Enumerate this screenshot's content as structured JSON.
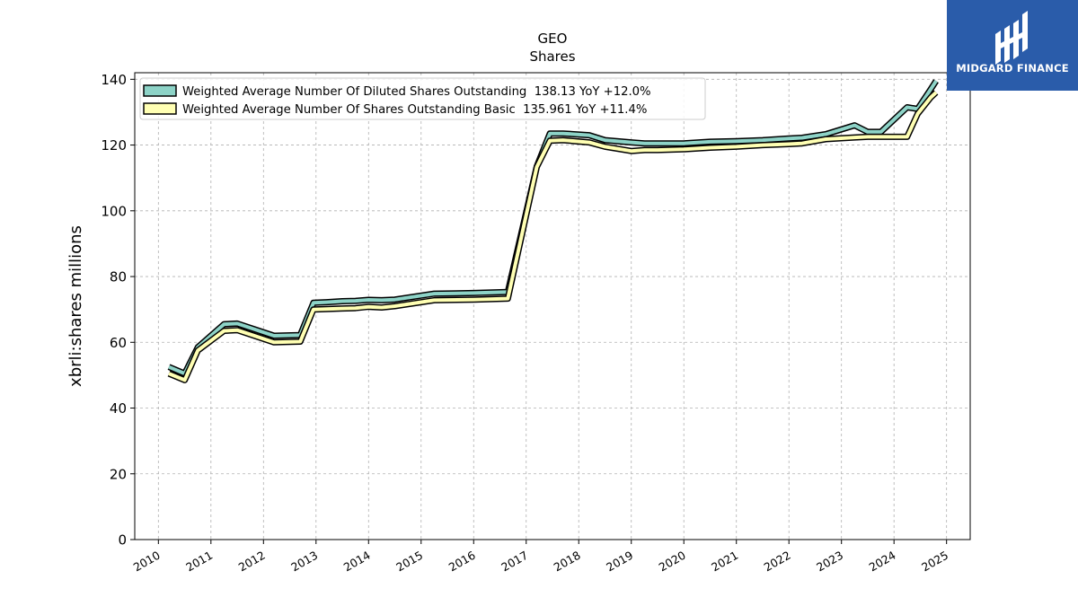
{
  "chart_data": {
    "type": "line",
    "title": "GEO",
    "subtitle": "Shares",
    "xlabel": "",
    "ylabel": "xbrli:shares millions",
    "xlim": [
      2009.55,
      2025.45
    ],
    "ylim": [
      0,
      142
    ],
    "grid": true,
    "legend_position": "top-left",
    "x_ticks": [
      "2010",
      "2011",
      "2012",
      "2013",
      "2014",
      "2015",
      "2016",
      "2017",
      "2018",
      "2019",
      "2020",
      "2021",
      "2022",
      "2023",
      "2024",
      "2025"
    ],
    "y_ticks": [
      "0",
      "20",
      "40",
      "60",
      "80",
      "100",
      "120",
      "140"
    ],
    "series": [
      {
        "name": "Weighted Average Number Of Diluted Shares Outstanding  138.13 YoY +12.0%",
        "color": "#8dd3c7",
        "x": [
          2010.2,
          2010.5,
          2010.75,
          2011.25,
          2011.5,
          2012.2,
          2012.7,
          2012.95,
          2013.2,
          2013.5,
          2013.75,
          2014.0,
          2014.25,
          2014.5,
          2015.25,
          2016.0,
          2016.65,
          2017.2,
          2017.45,
          2017.7,
          2018.2,
          2018.5,
          2019.0,
          2019.25,
          2019.5,
          2020.0,
          2020.5,
          2021.0,
          2021.5,
          2022.0,
          2022.25,
          2022.7,
          2023.25,
          2023.5,
          2023.75,
          2024.25,
          2024.45,
          2024.7,
          2024.8
        ],
        "y": [
          52.5,
          50.5,
          58.5,
          65.5,
          65.7,
          62.0,
          62.2,
          72.0,
          72.2,
          72.5,
          72.6,
          72.9,
          72.8,
          73.0,
          74.8,
          75.0,
          75.3,
          113.5,
          123.5,
          123.5,
          123.0,
          121.5,
          120.8,
          120.5,
          120.5,
          120.5,
          121.0,
          121.2,
          121.5,
          122.0,
          122.2,
          123.3,
          126.0,
          124.0,
          124.0,
          131.5,
          131.0,
          137.0,
          139.5
        ]
      },
      {
        "name": "Weighted Average Number Of Shares Outstanding Basic  135.961 YoY +11.4%",
        "color": "#ffffb3",
        "x": [
          2010.2,
          2010.5,
          2010.75,
          2011.25,
          2011.5,
          2012.2,
          2012.7,
          2012.95,
          2013.2,
          2013.5,
          2013.75,
          2014.0,
          2014.25,
          2014.5,
          2015.25,
          2016.0,
          2016.65,
          2017.2,
          2017.45,
          2017.7,
          2018.2,
          2018.5,
          2019.0,
          2019.25,
          2019.5,
          2020.0,
          2020.5,
          2021.0,
          2021.5,
          2022.0,
          2022.25,
          2022.7,
          2023.25,
          2023.5,
          2023.75,
          2024.25,
          2024.45,
          2024.7,
          2024.8
        ],
        "y": [
          50.5,
          48.5,
          57.5,
          63.5,
          63.7,
          60.0,
          60.2,
          70.0,
          70.1,
          70.3,
          70.4,
          70.8,
          70.6,
          71.0,
          72.8,
          73.0,
          73.3,
          113.3,
          121.3,
          121.5,
          120.8,
          119.5,
          118.2,
          118.5,
          118.5,
          118.7,
          119.2,
          119.5,
          120.0,
          120.3,
          120.5,
          121.8,
          122.3,
          122.5,
          122.5,
          122.5,
          129.5,
          134.5,
          136.0
        ]
      }
    ]
  },
  "logo": {
    "text": "MIDGARD FINANCE",
    "background": "#2a5caa"
  }
}
